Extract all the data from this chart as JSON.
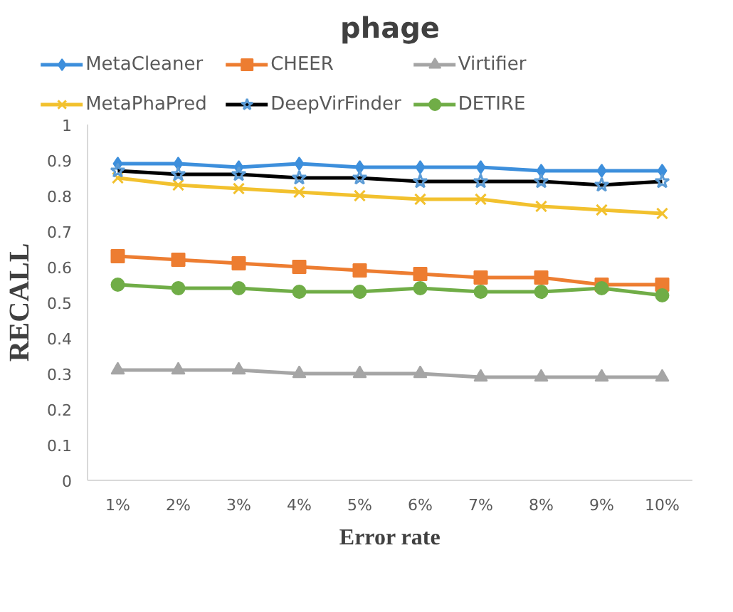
{
  "chart_data": {
    "type": "line",
    "title": "phage",
    "xlabel": "Error rate",
    "ylabel": "RECALL",
    "categories": [
      "1%",
      "2%",
      "3%",
      "4%",
      "5%",
      "6%",
      "7%",
      "8%",
      "9%",
      "10%"
    ],
    "ylim": [
      0,
      1
    ],
    "yticks": [
      0,
      0.1,
      0.2,
      0.3,
      0.4,
      0.5,
      0.6,
      0.7,
      0.8,
      0.9,
      1
    ],
    "grid": false,
    "legend": "top",
    "line_style": "solid",
    "series": [
      {
        "name": "MetaCleaner",
        "color": "#3d8fdc",
        "marker": "diamond",
        "values": [
          0.89,
          0.89,
          0.88,
          0.89,
          0.88,
          0.88,
          0.88,
          0.87,
          0.87,
          0.87
        ]
      },
      {
        "name": "CHEER",
        "color": "#ed7d31",
        "marker": "square",
        "values": [
          0.63,
          0.62,
          0.61,
          0.6,
          0.59,
          0.58,
          0.57,
          0.57,
          0.55,
          0.55
        ]
      },
      {
        "name": "Virtifier",
        "color": "#a5a5a5",
        "marker": "triangle",
        "values": [
          0.31,
          0.31,
          0.31,
          0.3,
          0.3,
          0.3,
          0.29,
          0.29,
          0.29,
          0.29
        ]
      },
      {
        "name": "MetaPhaPred",
        "color": "#f2c12e",
        "marker": "cross",
        "values": [
          0.85,
          0.83,
          0.82,
          0.81,
          0.8,
          0.79,
          0.79,
          0.77,
          0.76,
          0.75
        ]
      },
      {
        "name": "DeepVirFinder",
        "color": "#000000",
        "marker": "star",
        "values": [
          0.87,
          0.86,
          0.86,
          0.85,
          0.85,
          0.84,
          0.84,
          0.84,
          0.83,
          0.84
        ]
      },
      {
        "name": "DETIRE",
        "color": "#70ad47",
        "marker": "circle",
        "values": [
          0.55,
          0.54,
          0.54,
          0.53,
          0.53,
          0.54,
          0.53,
          0.53,
          0.54,
          0.52
        ]
      }
    ]
  }
}
